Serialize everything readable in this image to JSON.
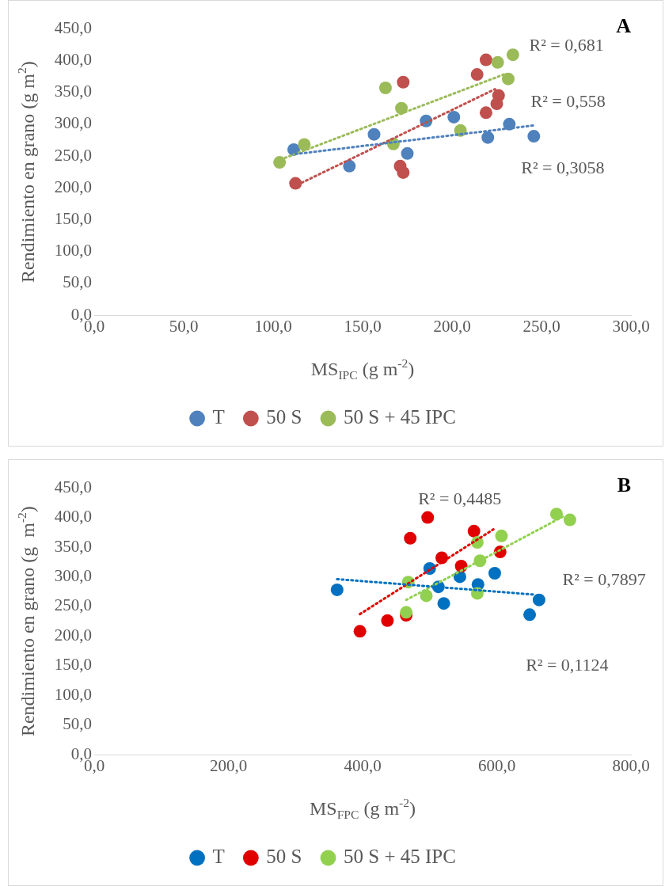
{
  "chart_data": [
    {
      "type": "scatter",
      "title": "A",
      "xlabel": "MS$_{IPC}$ (g m$^{-2}$)",
      "ylabel": "Rendimiento en grano (g m$^{2}$)",
      "xlim": [
        0,
        300
      ],
      "xticks": [
        {
          "value": 0,
          "label": "0,0"
        },
        {
          "value": 50,
          "label": "50,0"
        },
        {
          "value": 100,
          "label": "100,0"
        },
        {
          "value": 150,
          "label": "150,0"
        },
        {
          "value": 200,
          "label": "200,0"
        },
        {
          "value": 250,
          "label": "250,0"
        },
        {
          "value": 300,
          "label": "300,0"
        }
      ],
      "ylim": [
        0,
        450
      ],
      "yticks": [
        {
          "value": 0,
          "label": "0,0"
        },
        {
          "value": 50,
          "label": "50,0"
        },
        {
          "value": 100,
          "label": "100,0"
        },
        {
          "value": 150,
          "label": "150,0"
        },
        {
          "value": 200,
          "label": "200,0"
        },
        {
          "value": 250,
          "label": "250,0"
        },
        {
          "value": 300,
          "label": "300,0"
        },
        {
          "value": 350,
          "label": "350,0"
        },
        {
          "value": 400,
          "label": "400,0"
        },
        {
          "value": 450,
          "label": "450,0"
        }
      ],
      "grid": false,
      "legend": "bottom",
      "marker": "circle",
      "series": [
        {
          "name": "T",
          "color": "#4f81bd",
          "x": [
            111.5,
            142.6,
            156.4,
            175,
            185.5,
            201,
            220,
            232,
            245.7
          ],
          "values": [
            260,
            234,
            284,
            254,
            305,
            311,
            279,
            300,
            281
          ]
        },
        {
          "name": "50 S",
          "color": "#c0504d",
          "x": [
            112.5,
            172.7,
            171,
            172.7,
            219,
            214,
            226,
            225,
            219
          ],
          "values": [
            207,
            366,
            234,
            224,
            401,
            378,
            345,
            332,
            318
          ]
        },
        {
          "name": "50 S + 45 IPC",
          "color": "#9bbb59",
          "x": [
            103.6,
            117.4,
            162.8,
            171.7,
            167.2,
            204.7,
            225.5,
            234,
            231.4
          ],
          "values": [
            240,
            268,
            357,
            325,
            269,
            290,
            397,
            409,
            371
          ]
        },
        {
          "type": "line",
          "color": "#4f81bd",
          "line_style": "dotted",
          "marker": "none",
          "x": [
            112.5,
            245.7
          ],
          "values": [
            253,
            298
          ]
        },
        {
          "type": "line",
          "color": "#c0504d",
          "line_style": "dotted",
          "marker": "none",
          "x": [
            116,
            224
          ],
          "values": [
            208,
            355
          ]
        },
        {
          "type": "line",
          "color": "#9bbb59",
          "line_style": "dotted",
          "marker": "none",
          "x": [
            106.6,
            228.9
          ],
          "values": [
            247,
            378
          ]
        }
      ],
      "annotations": [
        "R² = 0,681",
        "R² = 0,558",
        "R² = 0,3058"
      ]
    },
    {
      "type": "scatter",
      "title": "B",
      "xlabel": "MS$_{FPC}$ (g m$^{-2}$)",
      "ylabel": "Rendimiento en grano (g  m$^{-2}$)",
      "xlim": [
        0,
        800
      ],
      "xticks": [
        {
          "value": 0,
          "label": "0,0"
        },
        {
          "value": 200,
          "label": "200,0"
        },
        {
          "value": 400,
          "label": "400,0"
        },
        {
          "value": 600,
          "label": "600,0"
        },
        {
          "value": 800,
          "label": "800,0"
        }
      ],
      "ylim": [
        0,
        450
      ],
      "yticks": [
        {
          "value": 0,
          "label": "0,0"
        },
        {
          "value": 50,
          "label": "50,0"
        },
        {
          "value": 100,
          "label": "100,0"
        },
        {
          "value": 150,
          "label": "150,0"
        },
        {
          "value": 200,
          "label": "200,0"
        },
        {
          "value": 250,
          "label": "250,0"
        },
        {
          "value": 300,
          "label": "300,0"
        },
        {
          "value": 350,
          "label": "350,0"
        },
        {
          "value": 400,
          "label": "400,0"
        },
        {
          "value": 450,
          "label": "450,0"
        }
      ],
      "grid": false,
      "legend": "bottom",
      "marker": "circle",
      "series": [
        {
          "name": "T",
          "color": "#0070c0",
          "x": [
            362,
            500,
            513,
            521,
            545,
            572,
            597,
            649,
            663
          ],
          "values": [
            278,
            314,
            283,
            255,
            300,
            287,
            306,
            236,
            261
          ]
        },
        {
          "name": "50 S",
          "color": "#e00000",
          "x": [
            396,
            437,
            465,
            471,
            497,
            518,
            547,
            566,
            605
          ],
          "values": [
            208,
            226,
            235,
            365,
            400,
            332,
            318,
            377,
            342
          ]
        },
        {
          "name": "50 S + 45 IPC",
          "color": "#92d050",
          "x": [
            465,
            468,
            495,
            571,
            575,
            571,
            607,
            689,
            709
          ],
          "values": [
            240,
            291,
            268,
            272,
            327,
            358,
            369,
            406,
            396
          ]
        },
        {
          "type": "line",
          "color": "#0070c0",
          "line_style": "dotted",
          "marker": "none",
          "x": [
            362,
            655
          ],
          "values": [
            296,
            270
          ]
        },
        {
          "type": "line",
          "color": "#e00000",
          "line_style": "dotted",
          "marker": "none",
          "x": [
            396,
            595
          ],
          "values": [
            237,
            380
          ]
        },
        {
          "type": "line",
          "color": "#92d050",
          "line_style": "dotted",
          "marker": "none",
          "x": [
            465,
            701
          ],
          "values": [
            261,
            403
          ]
        }
      ],
      "annotations": [
        "R² = 0,4485",
        "R² = 0,7897",
        "R² = 0,1124"
      ]
    }
  ]
}
